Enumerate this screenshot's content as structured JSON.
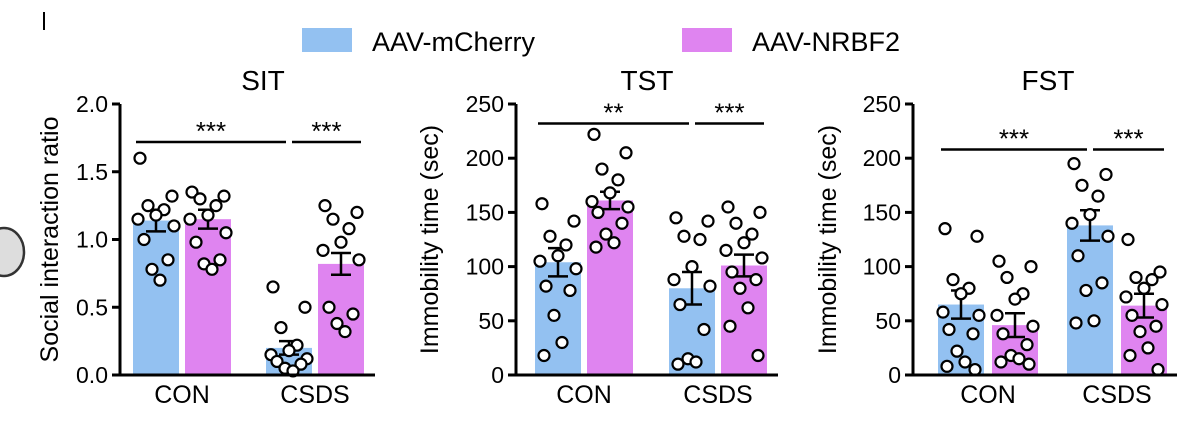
{
  "legend": [
    {
      "label": "AAV-mCherry",
      "color": "#93c1f1"
    },
    {
      "label": "AAV-NRBF2",
      "color": "#df84f0"
    }
  ],
  "significance_marker": "***",
  "chart_data": [
    {
      "type": "bar",
      "title": "SIT",
      "ylabel": "Social interaction ratio",
      "ylim": [
        0,
        2.0
      ],
      "yticks": [
        "0.0",
        "0.5",
        "1.0",
        "1.5",
        "2.0"
      ],
      "ytick_values": [
        0,
        0.5,
        1.0,
        1.5,
        2.0
      ],
      "categories": [
        "CON",
        "CSDS"
      ],
      "series": [
        {
          "name": "AAV-mCherry",
          "color": "#93c1f1",
          "values": [
            1.14,
            0.2
          ],
          "sem": [
            0.08,
            0.05
          ],
          "points": [
            [
              1.6,
              1.32,
              1.25,
              1.22,
              1.18,
              1.15,
              1.1,
              1.0,
              0.85,
              0.78,
              0.7
            ],
            [
              0.65,
              0.5,
              0.35,
              0.22,
              0.18,
              0.15,
              0.12,
              0.1,
              0.08,
              0.05,
              0.03
            ]
          ]
        },
        {
          "name": "AAV-NRBF2",
          "color": "#df84f0",
          "values": [
            1.15,
            0.82
          ],
          "sem": [
            0.07,
            0.08
          ],
          "points": [
            [
              1.35,
              1.32,
              1.3,
              1.25,
              1.18,
              1.15,
              1.05,
              0.98,
              0.85,
              0.82,
              0.78
            ],
            [
              1.25,
              1.2,
              1.15,
              1.08,
              0.98,
              0.92,
              0.85,
              0.5,
              0.45,
              0.38,
              0.32
            ]
          ]
        }
      ],
      "comparisons": [
        {
          "from": [
            0,
            0
          ],
          "to": [
            1,
            0
          ],
          "label": "***",
          "y": 1.72
        },
        {
          "from": [
            1,
            0
          ],
          "to": [
            1,
            1
          ],
          "label": "***",
          "y": 1.72
        }
      ]
    },
    {
      "type": "bar",
      "title": "TST",
      "ylabel": "Immobility time (sec)",
      "ylim": [
        0,
        250
      ],
      "yticks": [
        "0",
        "50",
        "100",
        "150",
        "200",
        "250"
      ],
      "ytick_values": [
        0,
        50,
        100,
        150,
        200,
        250
      ],
      "categories": [
        "CON",
        "CSDS"
      ],
      "series": [
        {
          "name": "AAV-mCherry",
          "color": "#93c1f1",
          "values": [
            104,
            80
          ],
          "sem": [
            13,
            15
          ],
          "points": [
            [
              158,
              142,
              128,
              120,
              110,
              105,
              98,
              82,
              78,
              55,
              30,
              18
            ],
            [
              145,
              142,
              128,
              125,
              100,
              88,
              82,
              65,
              42,
              15,
              12,
              10
            ]
          ]
        },
        {
          "name": "AAV-NRBF2",
          "color": "#df84f0",
          "values": [
            161,
            101
          ],
          "sem": [
            8,
            10
          ],
          "points": [
            [
              222,
              205,
              190,
              180,
              168,
              160,
              155,
              150,
              140,
              130,
              122,
              118
            ],
            [
              155,
              150,
              140,
              130,
              122,
              115,
              108,
              95,
              88,
              80,
              62,
              45,
              18
            ]
          ]
        }
      ],
      "comparisons": [
        {
          "from": [
            0,
            0
          ],
          "to": [
            1,
            0
          ],
          "label": "**",
          "y": 232
        },
        {
          "from": [
            1,
            0
          ],
          "to": [
            1,
            1
          ],
          "label": "***",
          "y": 232
        }
      ]
    },
    {
      "type": "bar",
      "title": "FST",
      "ylabel": "Immobility time (sec)",
      "ylim": [
        0,
        250
      ],
      "yticks": [
        "0",
        "50",
        "100",
        "150",
        "200",
        "250"
      ],
      "ytick_values": [
        0,
        50,
        100,
        150,
        200,
        250
      ],
      "categories": [
        "CON",
        "CSDS"
      ],
      "series": [
        {
          "name": "AAV-mCherry",
          "color": "#93c1f1",
          "values": [
            65,
            138
          ],
          "sem": [
            13,
            14
          ],
          "points": [
            [
              135,
              128,
              88,
              80,
              75,
              58,
              55,
              42,
              38,
              22,
              12,
              8,
              5
            ],
            [
              195,
              185,
              175,
              165,
              148,
              140,
              128,
              110,
              85,
              78,
              50,
              48
            ]
          ]
        },
        {
          "name": "AAV-NRBF2",
          "color": "#df84f0",
          "values": [
            46,
            64
          ],
          "sem": [
            11,
            11
          ],
          "points": [
            [
              105,
              100,
              90,
              75,
              70,
              55,
              45,
              38,
              28,
              18,
              15,
              12,
              10
            ],
            [
              125,
              95,
              90,
              88,
              80,
              72,
              65,
              55,
              45,
              40,
              25,
              18,
              5
            ]
          ]
        }
      ],
      "comparisons": [
        {
          "from": [
            0,
            0
          ],
          "to": [
            1,
            0
          ],
          "label": "***",
          "y": 208
        },
        {
          "from": [
            1,
            0
          ],
          "to": [
            1,
            1
          ],
          "label": "***",
          "y": 208
        }
      ]
    }
  ]
}
